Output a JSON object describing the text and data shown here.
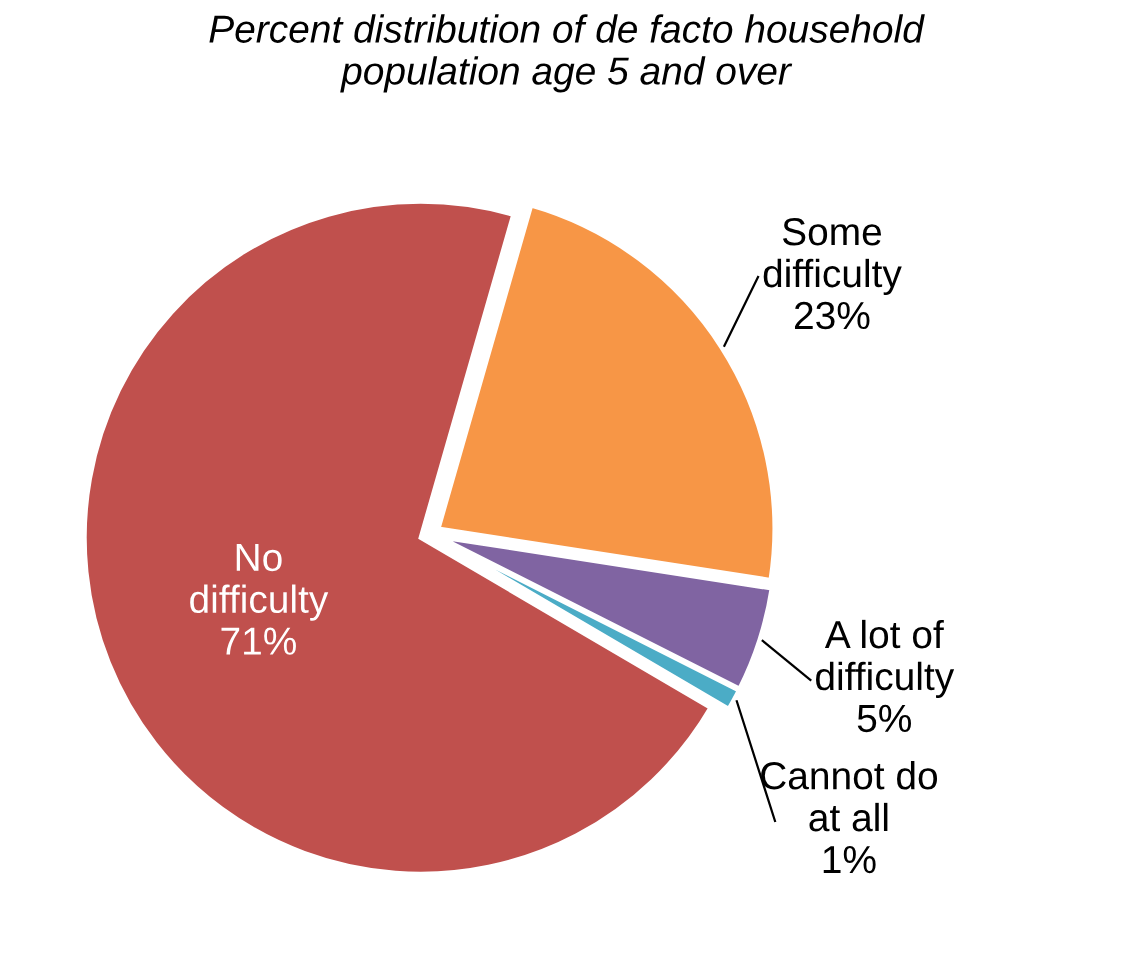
{
  "chart_data": {
    "type": "pie",
    "title": "Percent distribution of de facto household\npopulation age 5 and over",
    "categories": [
      "Some\ndifficulty",
      "A lot of\ndifficulty",
      "Cannot do\nat all",
      "No\ndifficulty"
    ],
    "values": [
      23,
      5,
      1,
      71
    ],
    "colors": [
      "#f79646",
      "#8064a2",
      "#4bacc6",
      "#c0504d"
    ],
    "value_labels": [
      "23%",
      "5%",
      "1%",
      "71%"
    ],
    "legend": false
  }
}
